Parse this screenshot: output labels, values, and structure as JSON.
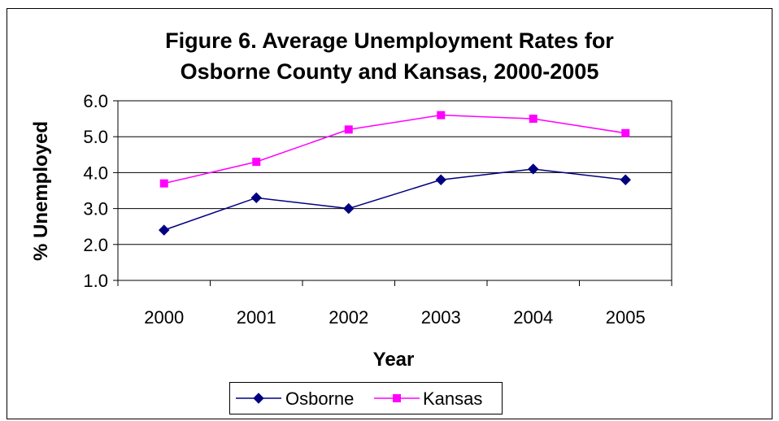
{
  "chart_data": {
    "type": "line",
    "title_line1": "Figure 6. Average Unemployment Rates for",
    "title_line2": "Osborne County and Kansas, 2000-2005",
    "xlabel": "Year",
    "ylabel": "% Unemployed",
    "categories": [
      "2000",
      "2001",
      "2002",
      "2003",
      "2004",
      "2005"
    ],
    "ylim": [
      1.0,
      6.0
    ],
    "yticks": [
      "1.0",
      "2.0",
      "3.0",
      "4.0",
      "5.0",
      "6.0"
    ],
    "grid": true,
    "legend_position": "bottom",
    "series": [
      {
        "name": "Osborne",
        "values": [
          2.4,
          3.3,
          3.0,
          3.8,
          4.1,
          3.8
        ],
        "color": "#000080",
        "marker": "diamond"
      },
      {
        "name": "Kansas",
        "values": [
          3.7,
          4.3,
          5.2,
          5.6,
          5.5,
          5.1
        ],
        "color": "#ff00ff",
        "marker": "square"
      }
    ]
  }
}
